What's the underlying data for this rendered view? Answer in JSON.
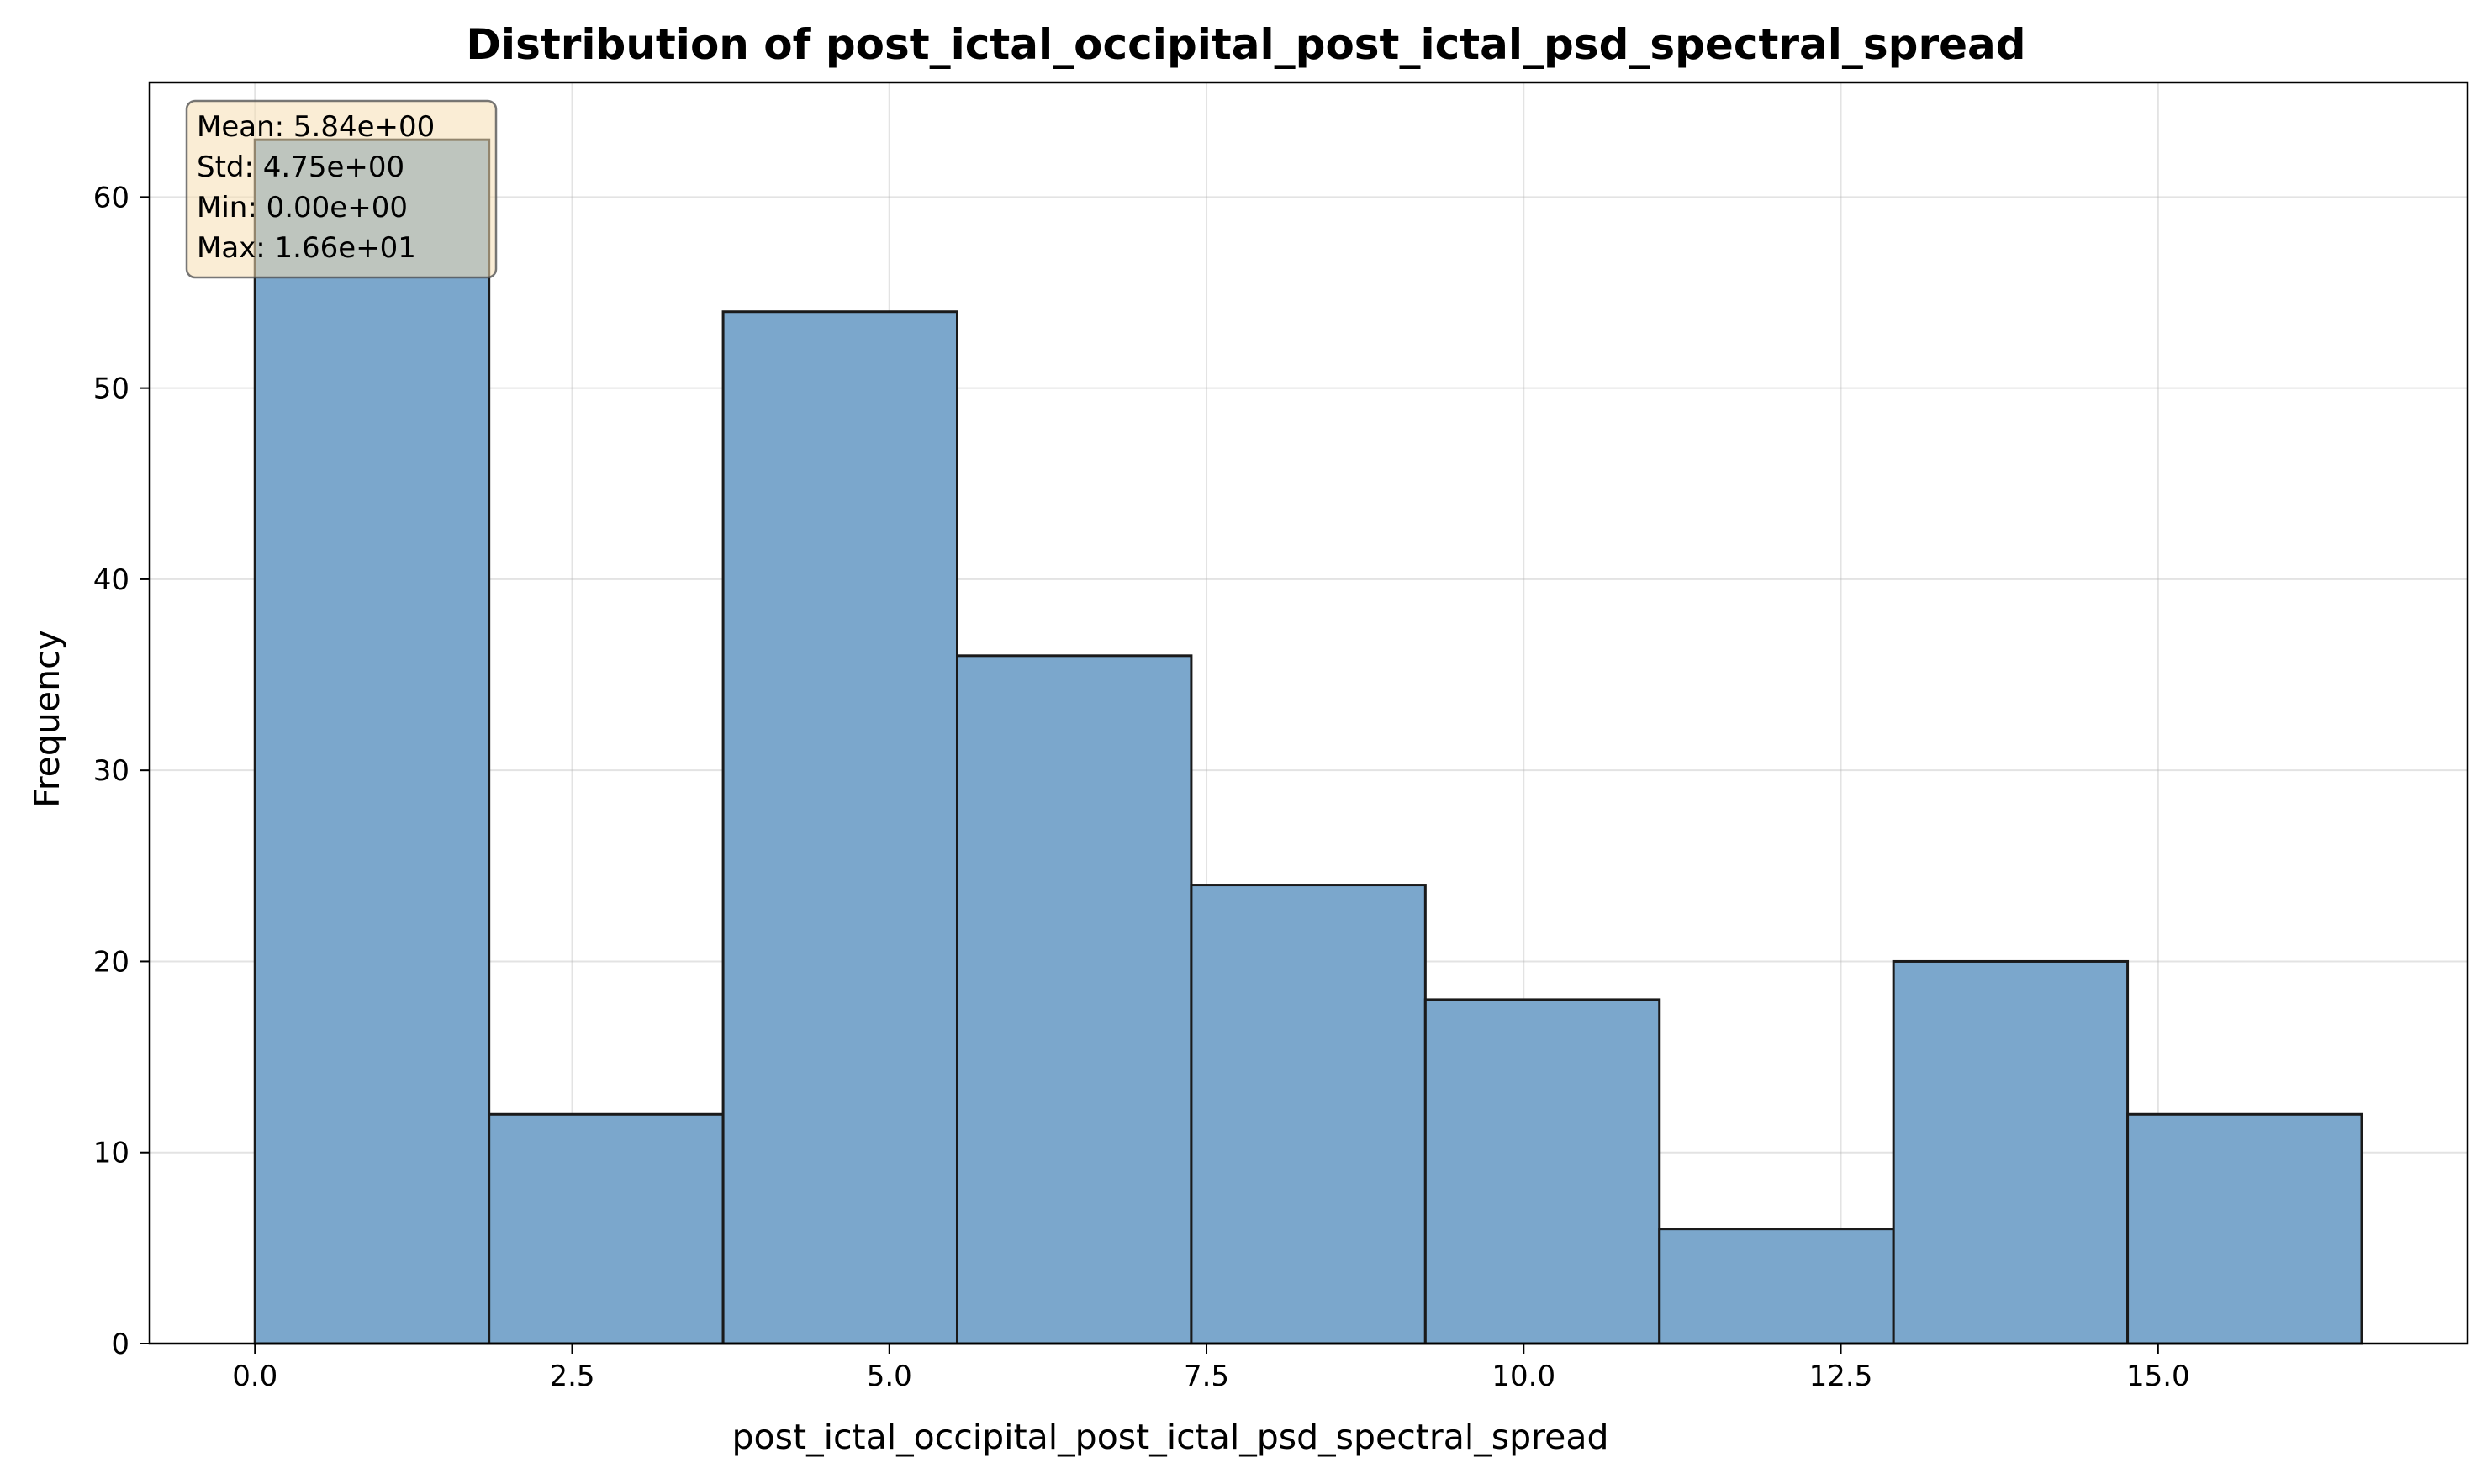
{
  "chart_data": {
    "type": "bar",
    "title": "Distribution of post_ictal_occipital_post_ictal_psd_spectral_spread",
    "xlabel": "post_ictal_occipital_post_ictal_psd_spectral_spread",
    "ylabel": "Frequency",
    "bins": [
      {
        "start": 0.0,
        "end": 1.845,
        "count": 63
      },
      {
        "start": 1.845,
        "end": 3.69,
        "count": 12
      },
      {
        "start": 3.69,
        "end": 5.535,
        "count": 54
      },
      {
        "start": 5.535,
        "end": 7.38,
        "count": 36
      },
      {
        "start": 7.38,
        "end": 9.225,
        "count": 24
      },
      {
        "start": 9.225,
        "end": 11.07,
        "count": 18
      },
      {
        "start": 11.07,
        "end": 12.915,
        "count": 6
      },
      {
        "start": 12.915,
        "end": 14.76,
        "count": 20
      },
      {
        "start": 14.76,
        "end": 16.605,
        "count": 12
      }
    ],
    "xlim": [
      -0.83,
      17.44
    ],
    "ylim": [
      0,
      66
    ],
    "xticks": [
      0.0,
      2.5,
      5.0,
      7.5,
      10.0,
      12.5,
      15.0
    ],
    "xtick_labels": [
      "0.0",
      "2.5",
      "5.0",
      "7.5",
      "10.0",
      "12.5",
      "15.0"
    ],
    "yticks": [
      0,
      10,
      20,
      30,
      40,
      50,
      60
    ],
    "ytick_labels": [
      "0",
      "10",
      "20",
      "30",
      "40",
      "50",
      "60"
    ],
    "grid": true,
    "bar_color": "#7ba7cc",
    "edge_color": "#1a1a1a",
    "stats_box": {
      "lines": [
        "Mean: 5.84e+00",
        "Std: 4.75e+00",
        "Min: 0.00e+00",
        "Max: 1.66e+01"
      ],
      "background": "#f5deb3",
      "placement": "top-left"
    }
  }
}
